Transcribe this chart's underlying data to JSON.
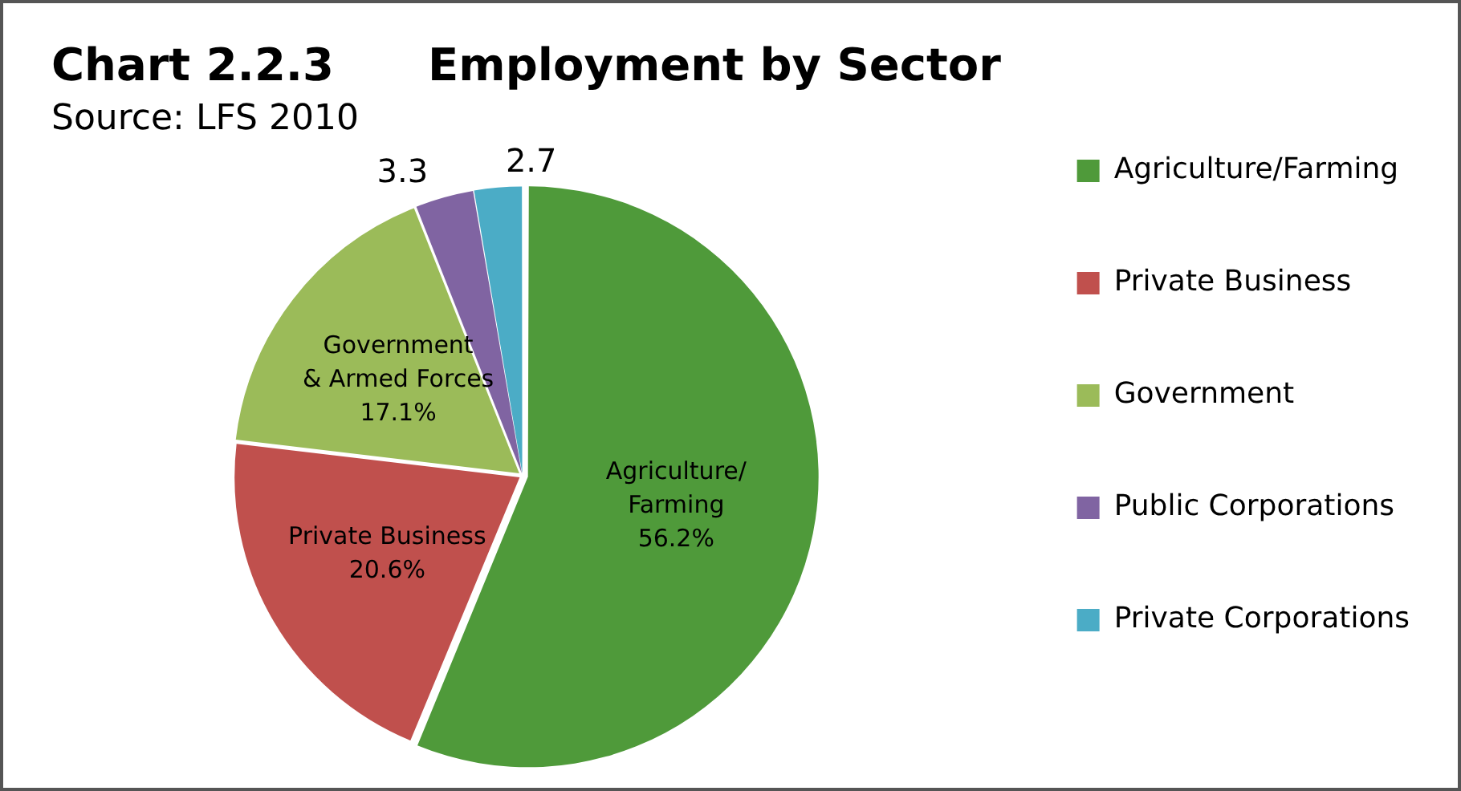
{
  "chart_data": {
    "type": "pie",
    "title": "Chart 2.2.3      Employment by Sector",
    "subtitle": "Source: LFS 2010",
    "categories": [
      "Agriculture/Farming",
      "Private Business",
      "Government",
      "Public Corporations",
      "Private Corporations"
    ],
    "values": [
      56.2,
      20.6,
      17.1,
      3.3,
      2.7
    ],
    "colors": [
      "#4f9a3a",
      "#c0504d",
      "#9bbb59",
      "#8064a2",
      "#4bacc6"
    ],
    "value_labels": [
      "Agriculture/\nFarming\n56.2%",
      "Private Business\n20.6%",
      "Government\n& Armed Forces\n17.1%",
      "3.3",
      "2.7"
    ],
    "legend": "right"
  }
}
